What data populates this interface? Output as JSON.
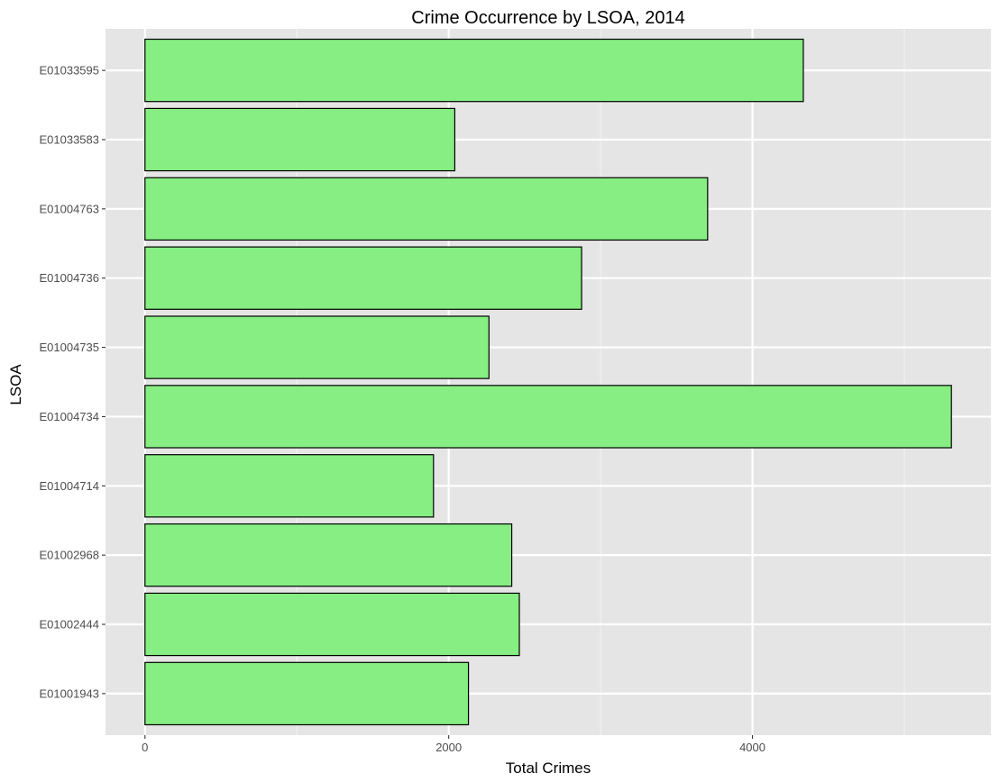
{
  "chart_data": {
    "type": "bar",
    "orientation": "horizontal",
    "title": "Crime Occurrence by LSOA, 2014",
    "xlabel": "Total Crimes",
    "ylabel": "LSOA",
    "categories": [
      "E01001943",
      "E01002444",
      "E01002968",
      "E01004714",
      "E01004734",
      "E01004735",
      "E01004736",
      "E01004763",
      "E01033583",
      "E01033595"
    ],
    "values": [
      2130,
      2465,
      2415,
      1900,
      5310,
      2265,
      2875,
      3705,
      2040,
      4335
    ],
    "xlim": [
      -260,
      5570
    ],
    "xticks": [
      0,
      2000,
      4000
    ],
    "grid": true,
    "fill_color": "#86EE82",
    "border_color": "#000000",
    "panel_color": "#E5E5E5"
  }
}
